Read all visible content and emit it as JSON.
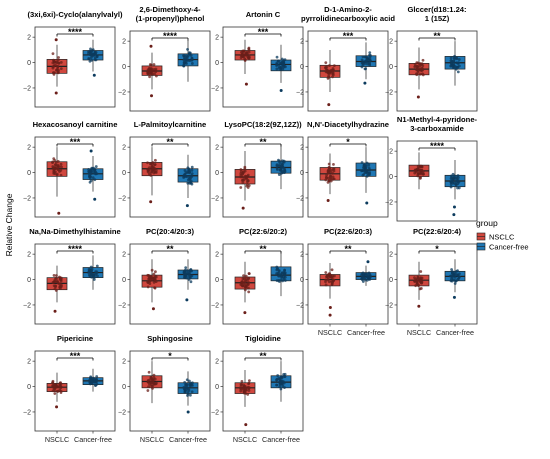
{
  "figure": {
    "ylabel": "Relative Change",
    "legend_title": "group",
    "legend_placement": "right",
    "groups": [
      "NSCLC",
      "Cancer-free"
    ],
    "colors": {
      "NSCLC": "#d0473e",
      "Cancer-free": "#1f77b4"
    }
  },
  "chart_data": [
    {
      "type": "box",
      "title": [
        "(3xi,6xi)-Cyclo(alanylvalyl)"
      ],
      "sig": "****",
      "ylim": [
        -3.5,
        2.8
      ],
      "yticks": [
        -2,
        0,
        2
      ],
      "groups": [
        {
          "name": "NSCLC",
          "q1": -0.85,
          "median": -0.3,
          "q3": 0.25,
          "whisker_low": -1.9,
          "whisker_high": 1.4,
          "outliers": [
            -2.4,
            1.8
          ]
        },
        {
          "name": "Cancer-free",
          "q1": 0.2,
          "median": 0.6,
          "q3": 0.95,
          "whisker_low": -0.7,
          "whisker_high": 1.8,
          "outliers": [
            -1.0
          ]
        }
      ]
    },
    {
      "type": "box",
      "title": [
        "2,6-Dimethoxy-4-",
        "(1-propenyl)phenol"
      ],
      "sig": "****",
      "ylim": [
        -3.5,
        2.8
      ],
      "yticks": [
        -2,
        0,
        2
      ],
      "groups": [
        {
          "name": "NSCLC",
          "q1": -0.7,
          "median": -0.35,
          "q3": 0.05,
          "whisker_low": -1.8,
          "whisker_high": 1.1,
          "outliers": [
            -2.3,
            1.6
          ]
        },
        {
          "name": "Cancer-free",
          "q1": 0.05,
          "median": 0.55,
          "q3": 1.0,
          "whisker_low": -1.2,
          "whisker_high": 2.1,
          "outliers": []
        }
      ]
    },
    {
      "type": "box",
      "title": [
        "Artonin C"
      ],
      "sig": "***",
      "ylim": [
        -3.5,
        2.8
      ],
      "yticks": [
        -2,
        0,
        2
      ],
      "groups": [
        {
          "name": "NSCLC",
          "q1": 0.2,
          "median": 0.6,
          "q3": 0.95,
          "whisker_low": -0.9,
          "whisker_high": 1.8,
          "outliers": [
            -1.7
          ]
        },
        {
          "name": "Cancer-free",
          "q1": -0.65,
          "median": -0.15,
          "q3": 0.2,
          "whisker_low": -1.6,
          "whisker_high": 1.4,
          "outliers": [
            -2.2
          ]
        }
      ]
    },
    {
      "type": "box",
      "title": [
        "D-1-Amino-2-",
        "pyrrolidinecarboxylic acid"
      ],
      "sig": "***",
      "ylim": [
        -3.5,
        2.8
      ],
      "yticks": [
        -2,
        0,
        2
      ],
      "groups": [
        {
          "name": "NSCLC",
          "q1": -0.85,
          "median": -0.35,
          "q3": 0.1,
          "whisker_low": -2.0,
          "whisker_high": 1.3,
          "outliers": [
            -3.0
          ]
        },
        {
          "name": "Cancer-free",
          "q1": 0.0,
          "median": 0.4,
          "q3": 0.85,
          "whisker_low": -1.0,
          "whisker_high": 1.9,
          "outliers": [
            -1.3
          ]
        }
      ]
    },
    {
      "type": "box",
      "title": [
        "Glccer(d18:1.24:",
        "1 (15Z)"
      ],
      "sig": "**",
      "ylim": [
        -3.5,
        2.8
      ],
      "yticks": [
        -2,
        0,
        2
      ],
      "groups": [
        {
          "name": "NSCLC",
          "q1": -0.65,
          "median": -0.2,
          "q3": 0.25,
          "whisker_low": -1.8,
          "whisker_high": 1.5,
          "outliers": [
            -2.4
          ]
        },
        {
          "name": "Cancer-free",
          "q1": -0.2,
          "median": 0.3,
          "q3": 0.8,
          "whisker_low": -1.5,
          "whisker_high": 2.0,
          "outliers": []
        }
      ]
    },
    {
      "type": "box",
      "title": [
        "Hexacosanoyl carnitine"
      ],
      "sig": "***",
      "ylim": [
        -3.5,
        2.8
      ],
      "yticks": [
        -2,
        0,
        2
      ],
      "groups": [
        {
          "name": "NSCLC",
          "q1": -0.3,
          "median": 0.3,
          "q3": 0.85,
          "whisker_low": -1.9,
          "whisker_high": 2.0,
          "outliers": [
            -3.2
          ]
        },
        {
          "name": "Cancer-free",
          "q1": -0.55,
          "median": -0.1,
          "q3": 0.3,
          "whisker_low": -1.5,
          "whisker_high": 1.3,
          "outliers": [
            -2.1,
            1.7
          ]
        }
      ]
    },
    {
      "type": "box",
      "title": [
        "L-Palmitoylcarnitine"
      ],
      "sig": "**",
      "ylim": [
        -3.5,
        2.8
      ],
      "yticks": [
        -2,
        0,
        2
      ],
      "groups": [
        {
          "name": "NSCLC",
          "q1": -0.25,
          "median": 0.3,
          "q3": 0.8,
          "whisker_low": -1.8,
          "whisker_high": 2.0,
          "outliers": [
            -2.3
          ]
        },
        {
          "name": "Cancer-free",
          "q1": -0.75,
          "median": -0.25,
          "q3": 0.3,
          "whisker_low": -2.0,
          "whisker_high": 1.4,
          "outliers": [
            -2.6
          ]
        }
      ]
    },
    {
      "type": "box",
      "title": [
        "LysoPC(18:2(9Z,12Z))"
      ],
      "sig": "**",
      "ylim": [
        -3.5,
        2.8
      ],
      "yticks": [
        -2,
        0,
        2
      ],
      "groups": [
        {
          "name": "NSCLC",
          "q1": -0.9,
          "median": -0.35,
          "q3": 0.25,
          "whisker_low": -2.2,
          "whisker_high": 1.7,
          "outliers": [
            -2.8
          ]
        },
        {
          "name": "Cancer-free",
          "q1": -0.05,
          "median": 0.4,
          "q3": 0.9,
          "whisker_low": -1.3,
          "whisker_high": 2.2,
          "outliers": []
        }
      ]
    },
    {
      "type": "box",
      "title": [
        "N,N'-Diacetylhydrazine"
      ],
      "sig": "*",
      "ylim": [
        -3.5,
        2.8
      ],
      "yticks": [
        -2,
        0,
        2
      ],
      "groups": [
        {
          "name": "NSCLC",
          "q1": -0.6,
          "median": -0.1,
          "q3": 0.4,
          "whisker_low": -1.7,
          "whisker_high": 1.5,
          "outliers": [
            -2.2
          ]
        },
        {
          "name": "Cancer-free",
          "q1": -0.3,
          "median": 0.2,
          "q3": 0.75,
          "whisker_low": -1.6,
          "whisker_high": 2.0,
          "outliers": [
            -2.4
          ]
        }
      ]
    },
    {
      "type": "box",
      "title": [
        "N1-Methyl-4-pyridone-",
        "3-carboxamide"
      ],
      "sig": "****",
      "ylim": [
        -3.5,
        2.8
      ],
      "yticks": [
        -2,
        0,
        2
      ],
      "groups": [
        {
          "name": "NSCLC",
          "q1": 0.0,
          "median": 0.45,
          "q3": 0.9,
          "whisker_low": -1.0,
          "whisker_high": 1.9,
          "outliers": []
        },
        {
          "name": "Cancer-free",
          "q1": -0.8,
          "median": -0.35,
          "q3": 0.1,
          "whisker_low": -1.8,
          "whisker_high": 1.3,
          "outliers": [
            -2.4,
            -3.0
          ]
        }
      ]
    },
    {
      "type": "box",
      "title": [
        "Na,Na-Dimethylhistamine"
      ],
      "sig": "****",
      "ylim": [
        -3.5,
        2.8
      ],
      "yticks": [
        -2,
        0,
        2
      ],
      "groups": [
        {
          "name": "NSCLC",
          "q1": -0.8,
          "median": -0.3,
          "q3": 0.15,
          "whisker_low": -1.8,
          "whisker_high": 1.1,
          "outliers": [
            -2.5
          ]
        },
        {
          "name": "Cancer-free",
          "q1": 0.15,
          "median": 0.55,
          "q3": 0.95,
          "whisker_low": -0.8,
          "whisker_high": 1.9,
          "outliers": []
        }
      ]
    },
    {
      "type": "box",
      "title": [
        "PC(20:4/20:3)"
      ],
      "sig": "**",
      "ylim": [
        -3.5,
        2.8
      ],
      "yticks": [
        -2,
        0,
        2
      ],
      "groups": [
        {
          "name": "NSCLC",
          "q1": -0.6,
          "median": -0.1,
          "q3": 0.35,
          "whisker_low": -1.8,
          "whisker_high": 1.6,
          "outliers": [
            -2.3
          ]
        },
        {
          "name": "Cancer-free",
          "q1": 0.05,
          "median": 0.4,
          "q3": 0.75,
          "whisker_low": -0.8,
          "whisker_high": 1.6,
          "outliers": [
            -1.6
          ]
        }
      ]
    },
    {
      "type": "box",
      "title": [
        "PC(22:6/20:2)"
      ],
      "sig": "**",
      "ylim": [
        -3.5,
        2.8
      ],
      "yticks": [
        -2,
        0,
        2
      ],
      "groups": [
        {
          "name": "NSCLC",
          "q1": -0.75,
          "median": -0.25,
          "q3": 0.2,
          "whisker_low": -1.8,
          "whisker_high": 1.4,
          "outliers": [
            -2.6
          ]
        },
        {
          "name": "Cancer-free",
          "q1": -0.1,
          "median": 0.35,
          "q3": 1.0,
          "whisker_low": -1.3,
          "whisker_high": 2.2,
          "outliers": []
        }
      ]
    },
    {
      "type": "box",
      "title": [
        "PC(22:6/20:3)"
      ],
      "sig": "**",
      "ylim": [
        -3.5,
        2.8
      ],
      "yticks": [
        -2,
        0,
        2
      ],
      "groups": [
        {
          "name": "NSCLC",
          "q1": -0.5,
          "median": 0.0,
          "q3": 0.4,
          "whisker_low": -1.5,
          "whisker_high": 1.3,
          "outliers": [
            -2.2,
            -2.8
          ]
        },
        {
          "name": "Cancer-free",
          "q1": 0.0,
          "median": 0.25,
          "q3": 0.55,
          "whisker_low": -0.5,
          "whisker_high": 1.1,
          "outliers": [
            1.4
          ]
        }
      ]
    },
    {
      "type": "box",
      "title": [
        "PC(22:6/20:4)"
      ],
      "sig": "*",
      "ylim": [
        -3.5,
        2.8
      ],
      "yticks": [
        -2,
        0,
        2
      ],
      "groups": [
        {
          "name": "NSCLC",
          "q1": -0.5,
          "median": -0.05,
          "q3": 0.35,
          "whisker_low": -1.6,
          "whisker_high": 1.4,
          "outliers": [
            -2.1
          ]
        },
        {
          "name": "Cancer-free",
          "q1": -0.1,
          "median": 0.25,
          "q3": 0.65,
          "whisker_low": -1.0,
          "whisker_high": 1.6,
          "outliers": [
            -1.4
          ]
        }
      ]
    },
    {
      "type": "box",
      "title": [
        "Pipericine"
      ],
      "sig": "***",
      "ylim": [
        -3.5,
        2.8
      ],
      "yticks": [
        -2,
        0,
        2
      ],
      "groups": [
        {
          "name": "NSCLC",
          "q1": -0.4,
          "median": -0.05,
          "q3": 0.25,
          "whisker_low": -1.2,
          "whisker_high": 1.1,
          "outliers": [
            -1.6
          ]
        },
        {
          "name": "Cancer-free",
          "q1": 0.15,
          "median": 0.45,
          "q3": 0.7,
          "whisker_low": -0.4,
          "whisker_high": 1.4,
          "outliers": []
        }
      ]
    },
    {
      "type": "box",
      "title": [
        "Sphingosine"
      ],
      "sig": "*",
      "ylim": [
        -3.5,
        2.8
      ],
      "yticks": [
        -2,
        0,
        2
      ],
      "groups": [
        {
          "name": "NSCLC",
          "q1": -0.1,
          "median": 0.4,
          "q3": 0.85,
          "whisker_low": -1.3,
          "whisker_high": 2.0,
          "outliers": []
        },
        {
          "name": "Cancer-free",
          "q1": -0.55,
          "median": -0.1,
          "q3": 0.3,
          "whisker_low": -1.5,
          "whisker_high": 1.2,
          "outliers": [
            -2.0
          ]
        }
      ]
    },
    {
      "type": "box",
      "title": [
        "Tigloidine"
      ],
      "sig": "**",
      "ylim": [
        -3.5,
        2.8
      ],
      "yticks": [
        -2,
        0,
        2
      ],
      "groups": [
        {
          "name": "NSCLC",
          "q1": -0.55,
          "median": -0.1,
          "q3": 0.3,
          "whisker_low": -1.6,
          "whisker_high": 1.3,
          "outliers": [
            -3.0
          ]
        },
        {
          "name": "Cancer-free",
          "q1": -0.1,
          "median": 0.35,
          "q3": 0.85,
          "whisker_low": -1.2,
          "whisker_high": 2.0,
          "outliers": []
        }
      ]
    }
  ]
}
